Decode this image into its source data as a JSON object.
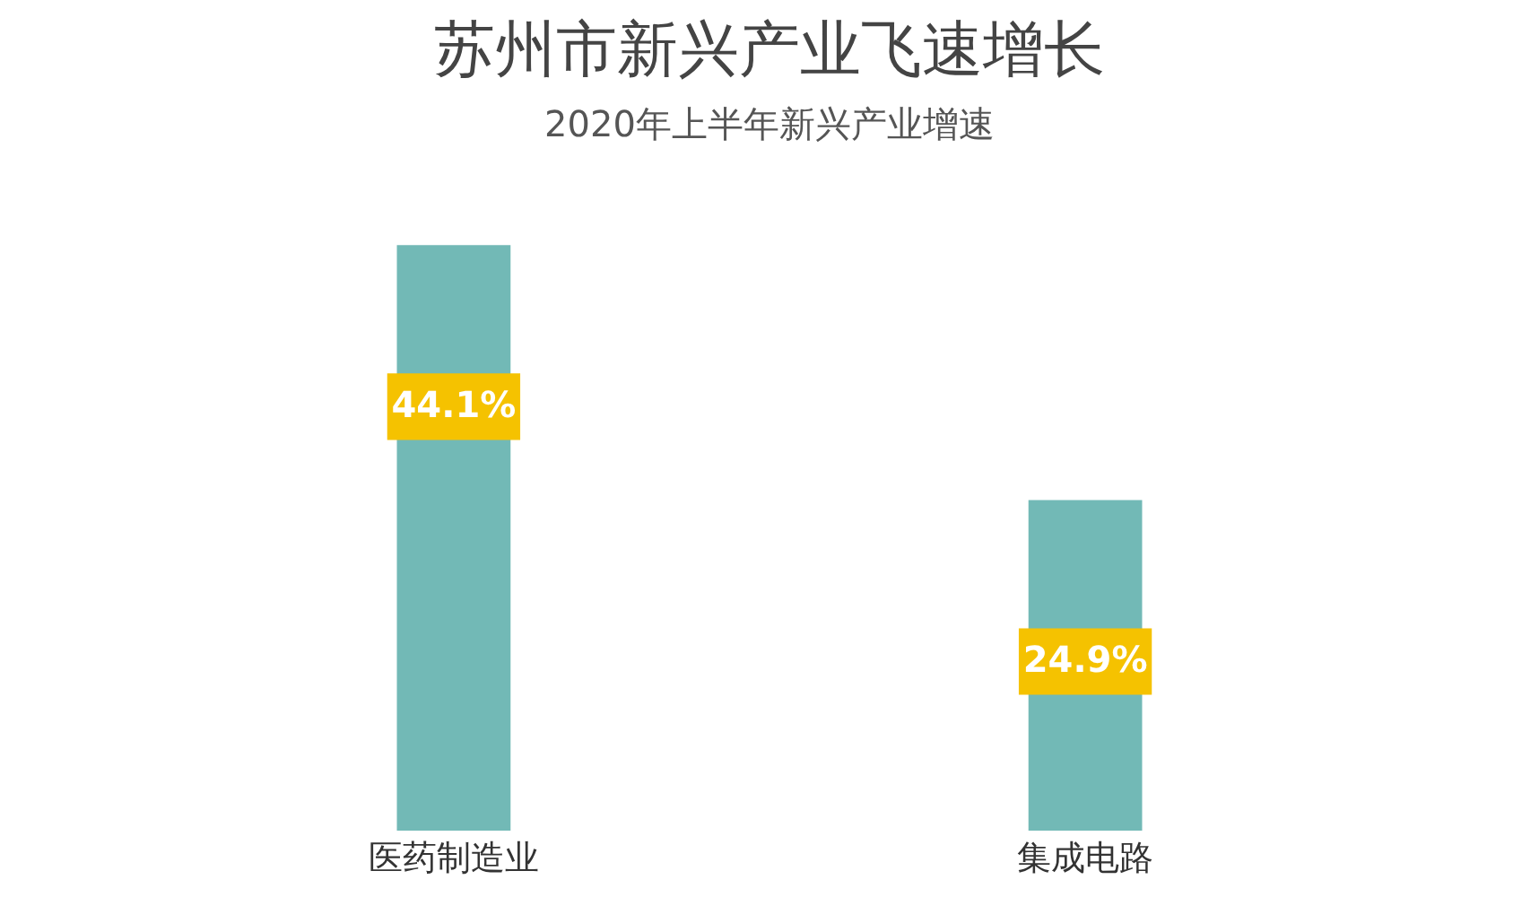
{
  "chart_data": {
    "type": "bar",
    "title": "苏州市新兴产业飞速增长",
    "subtitle": "2020年上半年新兴产业增速",
    "categories": [
      "医药制造业",
      "集成电路"
    ],
    "values": [
      44.1,
      24.9
    ],
    "value_labels": [
      "44.1%",
      "24.9%"
    ],
    "color": "#72b9b6"
  }
}
